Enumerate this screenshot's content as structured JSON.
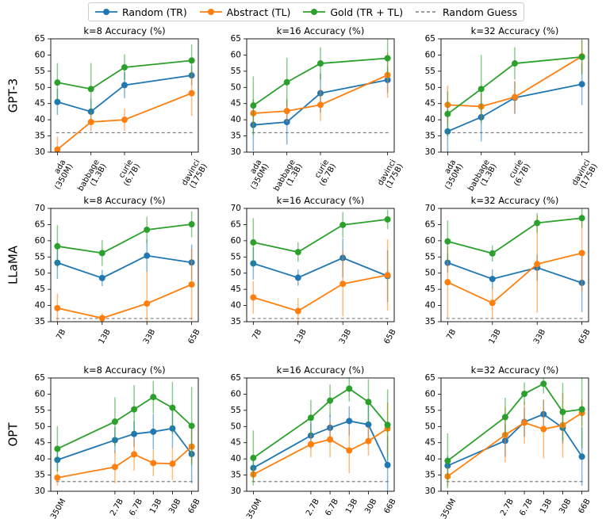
{
  "colors": {
    "random": "#1f77b4",
    "abstract": "#ff7f0e",
    "gold": "#2ca02c",
    "baseline": "#7f7f7f"
  },
  "legend": {
    "random_label": "Random (TR)",
    "abstract_label": "Abstract (TL)",
    "gold_label": "Gold (TR + TL)",
    "baseline_label": "Random Guess"
  },
  "row_labels": [
    "GPT-3",
    "LLaMA",
    "OPT"
  ],
  "chart_data": [
    {
      "type": "line",
      "row": "GPT-3",
      "title": "k=8 Accuracy (%)",
      "x": [
        0,
        1,
        2,
        4
      ],
      "categories": [
        "ada\n(350M)",
        "babbage\n(1.3B)",
        "curie\n(6.7B)",
        "davinci\n(175B)"
      ],
      "ylim": [
        30,
        65
      ],
      "yticks": [
        30,
        35,
        40,
        45,
        50,
        55,
        60,
        65
      ],
      "baseline": 36,
      "series": [
        {
          "name": "Random (TR)",
          "values": [
            45.5,
            42.5,
            50.7,
            53.7
          ],
          "err": [
            4,
            4,
            4,
            3
          ]
        },
        {
          "name": "Abstract (TL)",
          "values": [
            30.8,
            39.3,
            40,
            48.2
          ],
          "err": [
            4,
            3,
            3.5,
            7
          ]
        },
        {
          "name": "Gold (TR + TL)",
          "values": [
            51.5,
            49.5,
            56.2,
            58.3
          ],
          "err": [
            6,
            8,
            4,
            5
          ]
        }
      ]
    },
    {
      "type": "line",
      "row": "GPT-3",
      "title": "k=16 Accuracy (%)",
      "x": [
        0,
        1,
        2,
        4
      ],
      "categories": [
        "ada\n(350M)",
        "babbage\n(1.3B)",
        "curie\n(6.7B)",
        "davinci\n(175B)"
      ],
      "ylim": [
        30,
        65
      ],
      "yticks": [
        30,
        35,
        40,
        45,
        50,
        55,
        60,
        65
      ],
      "baseline": 36,
      "series": [
        {
          "name": "Random (TR)",
          "values": [
            38.4,
            39.3,
            48.2,
            52.3
          ],
          "err": [
            8,
            7,
            6,
            4
          ]
        },
        {
          "name": "Abstract (TL)",
          "values": [
            42,
            42.7,
            44.6,
            53.8
          ],
          "err": [
            4,
            3.5,
            5,
            7
          ]
        },
        {
          "name": "Gold (TR + TL)",
          "values": [
            44.4,
            51.6,
            57.4,
            59
          ],
          "err": [
            9,
            7.5,
            5,
            6
          ]
        }
      ]
    },
    {
      "type": "line",
      "row": "GPT-3",
      "title": "k=32 Accuracy (%)",
      "x": [
        0,
        1,
        2,
        4
      ],
      "categories": [
        "ada\n(350M)",
        "babbage\n(1.3B)",
        "curie\n(6.7B)",
        "davinci\n(175B)"
      ],
      "ylim": [
        30,
        65
      ],
      "yticks": [
        30,
        35,
        40,
        45,
        50,
        55,
        60,
        65
      ],
      "baseline": 36,
      "series": [
        {
          "name": "Random (TR)",
          "values": [
            36.4,
            40.8,
            46.8,
            51
          ],
          "err": [
            7,
            7.5,
            5,
            6.5
          ]
        },
        {
          "name": "Abstract (TL)",
          "values": [
            44.6,
            44.1,
            47,
            59.6
          ],
          "err": [
            6,
            4,
            5,
            5
          ]
        },
        {
          "name": "Gold (TR + TL)",
          "values": [
            41.8,
            49.5,
            57.4,
            59.4
          ],
          "err": [
            7,
            10.5,
            5,
            5.5
          ]
        }
      ]
    },
    {
      "type": "line",
      "row": "LLaMA",
      "title": "k=8 Accuracy (%)",
      "x": [
        0,
        1,
        2,
        3
      ],
      "categories": [
        "7B",
        "13B",
        "33B",
        "65B"
      ],
      "ylim": [
        35,
        70
      ],
      "yticks": [
        35,
        40,
        45,
        50,
        55,
        60,
        65,
        70
      ],
      "baseline": 36,
      "series": [
        {
          "name": "Random (TR)",
          "values": [
            53.2,
            48.5,
            55.4,
            53.3
          ],
          "err": [
            5,
            2.5,
            5,
            5.5
          ]
        },
        {
          "name": "Abstract (TL)",
          "values": [
            39.2,
            36.1,
            40.6,
            46.5
          ],
          "err": [
            4.5,
            1.5,
            10,
            11
          ]
        },
        {
          "name": "Gold (TR + TL)",
          "values": [
            58.3,
            56.2,
            63.4,
            65.1
          ],
          "err": [
            6.5,
            4,
            4,
            4
          ]
        }
      ]
    },
    {
      "type": "line",
      "row": "LLaMA",
      "title": "k=16 Accuracy (%)",
      "x": [
        0,
        1,
        2,
        3
      ],
      "categories": [
        "7B",
        "13B",
        "33B",
        "65B"
      ],
      "ylim": [
        35,
        70
      ],
      "yticks": [
        35,
        40,
        45,
        50,
        55,
        60,
        65,
        70
      ],
      "baseline": 36,
      "series": [
        {
          "name": "Random (TR)",
          "values": [
            53,
            48.6,
            54.7,
            49.1
          ],
          "err": [
            5,
            2.5,
            6,
            8
          ]
        },
        {
          "name": "Abstract (TL)",
          "values": [
            42.5,
            38.3,
            46.7,
            49.4
          ],
          "err": [
            5,
            4,
            10,
            11
          ]
        },
        {
          "name": "Gold (TR + TL)",
          "values": [
            59.5,
            56.5,
            64.9,
            66.6
          ],
          "err": [
            7.5,
            3,
            4,
            3
          ]
        }
      ]
    },
    {
      "type": "line",
      "row": "LLaMA",
      "title": "k=32 Accuracy (%)",
      "x": [
        0,
        1,
        2,
        3
      ],
      "categories": [
        "7B",
        "13B",
        "33B",
        "65B"
      ],
      "ylim": [
        35,
        70
      ],
      "yticks": [
        35,
        40,
        45,
        50,
        55,
        60,
        65,
        70
      ],
      "baseline": 36,
      "series": [
        {
          "name": "Random (TR)",
          "values": [
            53.2,
            48.2,
            51.7,
            47
          ],
          "err": [
            3,
            3,
            4,
            9
          ]
        },
        {
          "name": "Abstract (TL)",
          "values": [
            47.2,
            40.8,
            52.8,
            56.2
          ],
          "err": [
            11,
            5,
            15,
            12
          ]
        },
        {
          "name": "Gold (TR + TL)",
          "values": [
            59.8,
            56.1,
            65.5,
            67
          ],
          "err": [
            6.5,
            2.5,
            3,
            3
          ]
        }
      ]
    },
    {
      "type": "line",
      "row": "OPT",
      "title": "k=8 Accuracy (%)",
      "x": [
        0,
        3,
        4,
        5,
        6,
        7
      ],
      "categories": [
        "350M",
        "2.7B",
        "6.7B",
        "13B",
        "30B",
        "66B"
      ],
      "ylim": [
        30,
        65
      ],
      "yticks": [
        30,
        35,
        40,
        45,
        50,
        55,
        60,
        65
      ],
      "baseline": 33,
      "series": [
        {
          "name": "Random (TR)",
          "values": [
            39.7,
            45.8,
            47.7,
            48.4,
            49.4,
            41.5
          ],
          "err": [
            3.5,
            4,
            4,
            5.5,
            6,
            9
          ]
        },
        {
          "name": "Abstract (TL)",
          "values": [
            34.2,
            37.5,
            41.4,
            38.7,
            38.5,
            43.8
          ],
          "err": [
            2.5,
            5,
            5,
            4,
            5,
            5
          ]
        },
        {
          "name": "Gold (TR + TL)",
          "values": [
            43.1,
            51.5,
            55.3,
            59.1,
            55.8,
            50.2
          ],
          "err": [
            7,
            7.5,
            7.5,
            5,
            8,
            12
          ]
        }
      ]
    },
    {
      "type": "line",
      "row": "OPT",
      "title": "k=16 Accuracy (%)",
      "x": [
        0,
        3,
        4,
        5,
        6,
        7
      ],
      "categories": [
        "350M",
        "2.7B",
        "6.7B",
        "13B",
        "30B",
        "66B"
      ],
      "ylim": [
        30,
        65
      ],
      "yticks": [
        30,
        35,
        40,
        45,
        50,
        55,
        60,
        65
      ],
      "baseline": 33,
      "series": [
        {
          "name": "Random (TR)",
          "values": [
            37.2,
            47.2,
            49.6,
            51.7,
            50.6,
            38.1
          ],
          "err": [
            3,
            4,
            4,
            4.5,
            6,
            9
          ]
        },
        {
          "name": "Abstract (TL)",
          "values": [
            35.2,
            44.5,
            46,
            42.6,
            45.5,
            49.4
          ],
          "err": [
            2,
            4,
            5.5,
            7,
            4.5,
            8
          ]
        },
        {
          "name": "Gold (TR + TL)",
          "values": [
            40.3,
            52.7,
            58,
            61.7,
            57.6,
            50.5
          ],
          "err": [
            8.5,
            5.5,
            5,
            4,
            7,
            11
          ]
        }
      ]
    },
    {
      "type": "line",
      "row": "OPT",
      "title": "k=32 Accuracy (%)",
      "x": [
        0,
        3,
        4,
        5,
        6,
        7
      ],
      "categories": [
        "350M",
        "2.7B",
        "6.7B",
        "13B",
        "30B",
        "66B"
      ],
      "ylim": [
        30,
        65
      ],
      "yticks": [
        30,
        35,
        40,
        45,
        50,
        55,
        60,
        65
      ],
      "baseline": 33,
      "series": [
        {
          "name": "Random (TR)",
          "values": [
            37.9,
            45.6,
            51.4,
            53.8,
            49.6,
            40.7
          ],
          "err": [
            3,
            5,
            4.5,
            4.5,
            5,
            9
          ]
        },
        {
          "name": "Abstract (TL)",
          "values": [
            34.6,
            47.4,
            51.2,
            49.2,
            50.4,
            54.2
          ],
          "err": [
            3,
            8.5,
            6.5,
            9,
            10,
            4
          ]
        },
        {
          "name": "Gold (TR + TL)",
          "values": [
            39.4,
            52.9,
            60.1,
            63.2,
            54.5,
            55.3
          ],
          "err": [
            8.5,
            6,
            3.5,
            3,
            9,
            12
          ]
        }
      ]
    }
  ]
}
